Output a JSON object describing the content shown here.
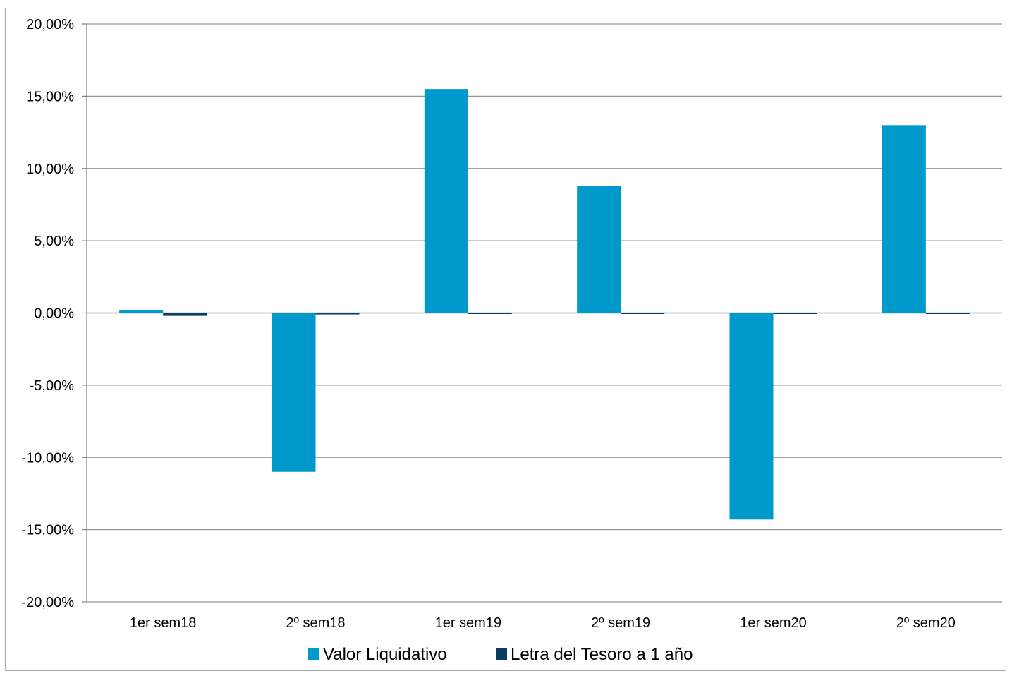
{
  "chart_data": {
    "type": "bar",
    "categories": [
      "1er sem18",
      "2º sem18",
      "1er sem19",
      "2º sem19",
      "1er sem20",
      "2º sem20"
    ],
    "series": [
      {
        "name": "Valor Liquidativo",
        "color": "#0099cc",
        "values": [
          0.2,
          -11.0,
          15.5,
          8.8,
          -14.3,
          13.0
        ]
      },
      {
        "name": "Letra del Tesoro a 1 año",
        "color": "#0a3d62",
        "values": [
          -0.2,
          -0.1,
          -0.05,
          -0.05,
          -0.05,
          -0.05
        ]
      }
    ],
    "ylim": [
      -20,
      20
    ],
    "y_ticks": [
      20,
      15,
      10,
      5,
      0,
      -5,
      -10,
      -15,
      -20
    ],
    "y_tick_labels": [
      "20,00%",
      "15,00%",
      "10,00%",
      "5,00%",
      "0,00%",
      "-5,00%",
      "-10,00%",
      "-15,00%",
      "-20,00%"
    ],
    "grid": true,
    "gridline_color": "#969696",
    "legend_position": "bottom"
  }
}
